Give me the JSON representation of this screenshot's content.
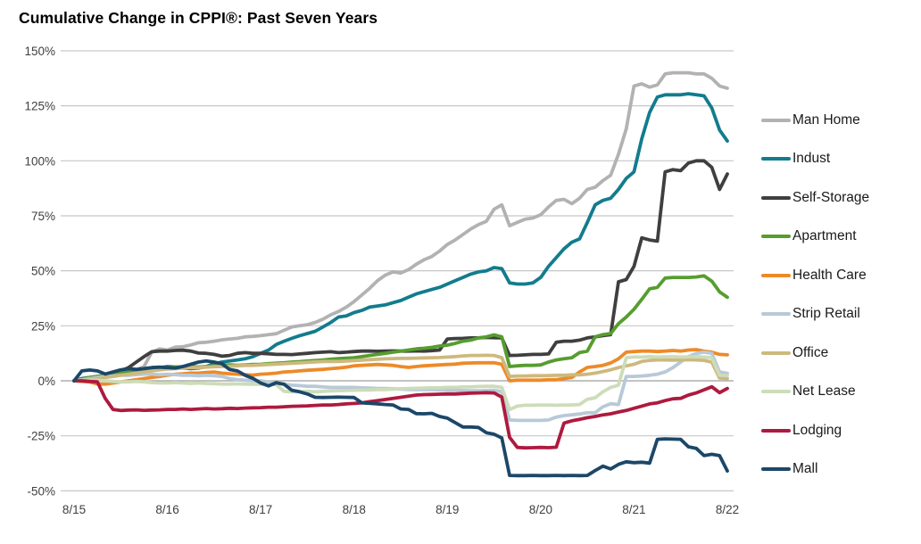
{
  "title": "Cumulative Change in CPPI®: Past Seven Years",
  "chart_data": {
    "type": "line",
    "title": "Cumulative Change in CPPI®: Past Seven Years",
    "xlabel": "",
    "ylabel": "",
    "x_unit": "monthly, Aug 2015 through Aug 2022",
    "x_tick_labels": [
      "8/15",
      "8/16",
      "8/17",
      "8/18",
      "8/19",
      "8/20",
      "8/21",
      "8/22"
    ],
    "y_tick_labels": [
      "150%",
      "125%",
      "100%",
      "75%",
      "50%",
      "25%",
      "0%",
      "-25%",
      "-50%"
    ],
    "ylim": [
      -50,
      150
    ],
    "y_tick_step": 25,
    "grid": true,
    "legend_position": "right",
    "grid_color": "#c7c7c7",
    "zero_line_color": "#9e9e9e",
    "tick_color": "#3f3f3f",
    "series": [
      {
        "name": "Man Home",
        "slug": "man-home",
        "color": "#b2b2b2",
        "values": [
          0,
          0.5,
          1,
          1.5,
          2,
          2.5,
          3,
          4,
          5,
          6.5,
          13,
          14.5,
          14,
          15.3,
          15.5,
          16.3,
          17.3,
          17.5,
          18,
          18.6,
          19,
          19.3,
          20,
          20.2,
          20.5,
          21,
          21.4,
          23,
          24.5,
          25,
          25.5,
          26.5,
          28,
          30,
          31.5,
          33.5,
          36,
          39,
          42,
          45.5,
          48,
          49.5,
          49,
          50.5,
          53,
          55,
          56.5,
          59,
          62,
          64,
          66.5,
          69,
          71,
          72.5,
          78,
          80,
          70.5,
          72,
          73.5,
          74,
          75.5,
          79,
          82,
          82.5,
          80.5,
          83,
          87,
          88,
          91,
          93.5,
          103,
          114.5,
          134,
          135,
          133.5,
          134.5,
          139.5,
          140,
          140,
          140,
          139.5,
          139.5,
          137.5,
          134,
          133
        ]
      },
      {
        "name": "Indust",
        "slug": "indust",
        "color": "#127c8d",
        "values": [
          0,
          1,
          1.5,
          2,
          2.5,
          3,
          3.5,
          4,
          4.5,
          5,
          5.5,
          6,
          6.5,
          6.3,
          5.8,
          5.5,
          5.8,
          6.5,
          7.8,
          8.5,
          9,
          9.5,
          10,
          11,
          12.5,
          14,
          16.5,
          18,
          19.3,
          20.5,
          21.5,
          22.5,
          24.5,
          26.5,
          29,
          29.5,
          31,
          32,
          33.5,
          34,
          34.5,
          35.5,
          36.5,
          38,
          39.5,
          40.5,
          41.5,
          42.5,
          44,
          45.5,
          47,
          48.5,
          49.5,
          50,
          51.5,
          51,
          44.5,
          44,
          44,
          44.5,
          47,
          52,
          56,
          60,
          63,
          64.5,
          72,
          80,
          82,
          83,
          87,
          92,
          95,
          110,
          122,
          129,
          130,
          130,
          130,
          130.5,
          130,
          129.5,
          124,
          114,
          109
        ]
      },
      {
        "name": "Self-Storage",
        "slug": "self-storage",
        "color": "#3f3f3f",
        "values": [
          0,
          0.5,
          1,
          1.5,
          2,
          2.4,
          4.5,
          6,
          8.5,
          11,
          13.2,
          13.5,
          13.5,
          13.8,
          13.9,
          13.5,
          12.6,
          12.5,
          12,
          11.2,
          11.5,
          12.5,
          12.8,
          12.5,
          12.5,
          12.3,
          12,
          12,
          11.9,
          12.2,
          12.5,
          12.8,
          13,
          13.2,
          12.8,
          13,
          13.3,
          13.5,
          13.5,
          13.4,
          13.5,
          13.6,
          13.5,
          13.5,
          13.6,
          13.5,
          13.7,
          14,
          19,
          19.2,
          19.3,
          19.5,
          19.5,
          19.7,
          19.6,
          19.5,
          11.5,
          11.6,
          11.8,
          12,
          12,
          12.2,
          17.5,
          18,
          18,
          18.5,
          19.5,
          20,
          20.5,
          21,
          45,
          46,
          52,
          65,
          64,
          63.5,
          95,
          96,
          95.5,
          99,
          100,
          100,
          97,
          87,
          94
        ]
      },
      {
        "name": "Apartment",
        "slug": "apartment",
        "color": "#569d2f",
        "values": [
          0,
          0.5,
          1.5,
          2,
          2.5,
          3,
          3.5,
          4,
          4.5,
          5.5,
          6,
          5.8,
          6,
          6.2,
          6.4,
          6.5,
          6.3,
          6.5,
          6.8,
          7,
          7.2,
          7,
          7.2,
          7.4,
          7.5,
          7.8,
          8,
          8.2,
          8.5,
          8.7,
          9,
          9.2,
          9.5,
          9.8,
          10.1,
          10.3,
          10.5,
          11,
          11.5,
          12,
          12.5,
          13,
          13.5,
          14,
          14.5,
          14.8,
          15.2,
          15.8,
          16.2,
          17,
          18,
          18.5,
          19.5,
          20,
          20.9,
          20,
          6.5,
          6.8,
          7,
          7,
          7.2,
          8.5,
          9.5,
          10,
          10.5,
          12.8,
          13.5,
          20,
          21,
          21.5,
          26,
          29,
          32.5,
          37,
          41.8,
          42.5,
          46.7,
          47,
          47,
          47,
          47.2,
          47.7,
          45.3,
          40.4,
          38
        ]
      },
      {
        "name": "Health Care",
        "slug": "health-care",
        "color": "#ed8a29",
        "values": [
          0,
          -0.3,
          -0.5,
          -1.5,
          -1.5,
          -1,
          -0.5,
          0,
          0.5,
          1,
          1.5,
          2,
          2.5,
          3,
          3.2,
          3.5,
          3.5,
          3.8,
          4,
          3.5,
          3.2,
          3,
          2.8,
          2.6,
          3,
          3.2,
          3.5,
          4,
          4.2,
          4.5,
          4.8,
          5,
          5.2,
          5.5,
          5.8,
          6.2,
          6.8,
          7,
          7.2,
          7.4,
          7.2,
          7,
          6.5,
          6.1,
          6.5,
          6.8,
          7,
          7.2,
          7.4,
          7.6,
          8,
          8.1,
          8.2,
          8.2,
          8.2,
          7.5,
          0,
          0.3,
          0.3,
          0.3,
          0.3,
          0.5,
          0.5,
          1,
          1.5,
          4,
          6.1,
          6.5,
          7,
          8.1,
          10,
          13,
          13.3,
          13.5,
          13.5,
          13.3,
          13.5,
          13.8,
          13.5,
          14,
          14.2,
          13.5,
          13,
          12,
          11.8
        ]
      },
      {
        "name": "Strip Retail",
        "slug": "strip-retail",
        "color": "#b8c9d8",
        "values": [
          0,
          0.5,
          1,
          1.5,
          2,
          2.2,
          2.5,
          2.5,
          2.8,
          3,
          3,
          2.8,
          3,
          2.8,
          2.5,
          2.5,
          2.3,
          2.5,
          2.3,
          2,
          1,
          0.5,
          0.3,
          0,
          0,
          -0.5,
          -1,
          -1.5,
          -2,
          -2.2,
          -2.5,
          -2.5,
          -2.8,
          -3,
          -3,
          -3,
          -3,
          -3.2,
          -3.3,
          -3.5,
          -3.5,
          -3.6,
          -3.8,
          -4,
          -4,
          -4,
          -4,
          -4.2,
          -4.3,
          -4.3,
          -4.4,
          -4.5,
          -4.5,
          -4.4,
          -4.3,
          -5,
          -17.8,
          -18,
          -18,
          -18,
          -18,
          -17.8,
          -16.5,
          -15.8,
          -15.5,
          -15.1,
          -14.5,
          -14.5,
          -11.8,
          -10.4,
          -10.8,
          2,
          2,
          2.2,
          2.5,
          3,
          4,
          6,
          8.5,
          11,
          12.5,
          13,
          12.5,
          4,
          3.4
        ]
      },
      {
        "name": "Office",
        "slug": "office",
        "color": "#cdb97e",
        "values": [
          0,
          0.3,
          0.8,
          1,
          1.5,
          2,
          2.5,
          3,
          3.5,
          4,
          4.5,
          5,
          5.3,
          5.5,
          5.8,
          6,
          6,
          6.2,
          6.4,
          6.5,
          6.6,
          6.8,
          7,
          7,
          7.2,
          7.4,
          7.6,
          7.8,
          8,
          8.2,
          8.4,
          8.6,
          8.8,
          8.8,
          8.8,
          9,
          9.2,
          9.4,
          9.6,
          9.8,
          10,
          10.1,
          10.2,
          10.2,
          10.3,
          10.4,
          10.5,
          10.6,
          10.8,
          11,
          11.3,
          11.5,
          11.5,
          11.6,
          11.5,
          10.5,
          2,
          2.2,
          2.2,
          2.3,
          2.3,
          2.4,
          2.5,
          2.5,
          2.7,
          2.7,
          3,
          3.5,
          4.2,
          5,
          6,
          6.8,
          7.5,
          8.8,
          9.3,
          9.5,
          9.5,
          9.4,
          9.5,
          9.6,
          9.5,
          9.3,
          8.5,
          1.2,
          1
        ]
      },
      {
        "name": "Net Lease",
        "slug": "net-lease",
        "color": "#cddcb9",
        "values": [
          0,
          0.2,
          0.3,
          0.2,
          0,
          -0.3,
          -0.5,
          -0.5,
          -0.3,
          -0.5,
          -0.8,
          -1,
          -1,
          -0.8,
          -1,
          -1.2,
          -1,
          -1.2,
          -1.3,
          -1.5,
          -1.5,
          -1.4,
          -1.5,
          -1.6,
          -1.5,
          -1.6,
          -1.8,
          -4.8,
          -5,
          -5,
          -4.8,
          -5,
          -4.8,
          -4.6,
          -4.5,
          -4.4,
          -4.3,
          -4.2,
          -4.2,
          -4,
          -4,
          -3.8,
          -3.6,
          -3.5,
          -3.4,
          -3.3,
          -3.2,
          -3.2,
          -3,
          -3,
          -2.8,
          -2.8,
          -2.6,
          -2.5,
          -2.5,
          -3,
          -13.1,
          -11.5,
          -11.1,
          -11.1,
          -11,
          -11,
          -11.1,
          -11,
          -11,
          -10.8,
          -8.4,
          -7.7,
          -5,
          -3,
          -2,
          10.5,
          10.8,
          10.8,
          11,
          10.8,
          10.9,
          11,
          10.8,
          10.9,
          11,
          10.8,
          10.5,
          2.5,
          2.4
        ]
      },
      {
        "name": "Lodging",
        "slug": "lodging",
        "color": "#ad1a3f",
        "values": [
          0,
          0,
          -0.3,
          -0.5,
          -8,
          -13,
          -13.5,
          -13.3,
          -13.2,
          -13.4,
          -13.3,
          -13.2,
          -13,
          -13,
          -12.8,
          -13,
          -12.8,
          -12.6,
          -12.8,
          -12.7,
          -12.5,
          -12.6,
          -12.4,
          -12.3,
          -12.2,
          -12,
          -12,
          -11.8,
          -11.6,
          -11.5,
          -11.4,
          -11.2,
          -11,
          -11,
          -10.8,
          -10.5,
          -10.3,
          -10,
          -9.5,
          -9,
          -8.5,
          -8,
          -7.5,
          -7,
          -6.5,
          -6.3,
          -6.2,
          -6.1,
          -6,
          -6,
          -5.8,
          -5.6,
          -5.5,
          -5.4,
          -5.5,
          -7.4,
          -25.7,
          -30.3,
          -30.5,
          -30.4,
          -30.3,
          -30.4,
          -30.2,
          -19.2,
          -18.2,
          -17.5,
          -16.8,
          -16.2,
          -15.5,
          -15,
          -14.2,
          -13.5,
          -12.5,
          -11.5,
          -10.5,
          -10,
          -9,
          -8.2,
          -8,
          -6.5,
          -5.5,
          -4.1,
          -2.7,
          -5.4,
          -3.5
        ]
      },
      {
        "name": "Mall",
        "slug": "mall",
        "color": "#1b4769",
        "values": [
          0,
          4.5,
          4.9,
          4.5,
          3.1,
          4,
          5,
          5.5,
          5.2,
          5.5,
          6,
          6.2,
          6,
          5.8,
          6.5,
          7.5,
          8.5,
          9,
          8.5,
          7.8,
          5.1,
          4.5,
          2.5,
          1.1,
          -1,
          -2.3,
          -0.9,
          -1.6,
          -4.3,
          -5,
          -6,
          -7.5,
          -7.6,
          -7.5,
          -7.4,
          -7.5,
          -7.6,
          -10,
          -10.2,
          -10.5,
          -10.8,
          -11,
          -12.8,
          -13,
          -14.9,
          -15,
          -14.8,
          -16.2,
          -17,
          -19,
          -21,
          -21,
          -21.2,
          -23.6,
          -24.3,
          -26,
          -43,
          -43.1,
          -43.1,
          -43,
          -43.1,
          -43.1,
          -43,
          -43.1,
          -43,
          -43.1,
          -43,
          -40.8,
          -38.8,
          -40.1,
          -38,
          -36.8,
          -37.2,
          -37,
          -37.4,
          -26.6,
          -26.4,
          -26.5,
          -26.6,
          -30,
          -30.7,
          -34,
          -33.4,
          -34,
          -41
        ]
      }
    ]
  }
}
